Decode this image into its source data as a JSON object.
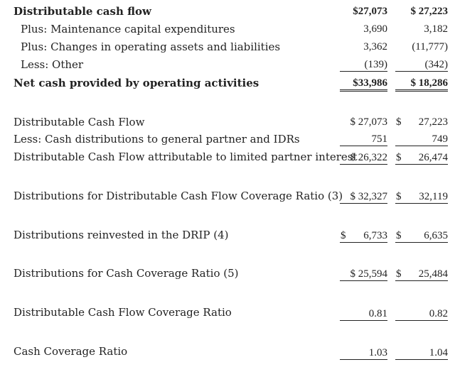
{
  "section1": {
    "row1": {
      "label": "Distributable cash flow",
      "c1": "$27,073",
      "c2": "$ 27,223"
    },
    "row2": {
      "label": "Plus: Maintenance capital expenditures",
      "c1": "3,690",
      "c2": "3,182"
    },
    "row3": {
      "label": "Plus: Changes in operating assets and liabilities",
      "c1": "3,362",
      "c2": "(11,777)"
    },
    "row4": {
      "label": "Less: Other",
      "c1": "(139)",
      "c2": "(342)"
    },
    "row5": {
      "label": "Net cash provided by operating activities",
      "c1": "$33,986",
      "c2": "$ 18,286"
    }
  },
  "section2": {
    "row1": {
      "label": "Distributable Cash Flow",
      "c1": "$ 27,073",
      "d2": "$",
      "c2": "27,223"
    },
    "row2": {
      "label": "Less: Cash distributions to general partner and IDRs",
      "c1": "751",
      "c2": "749"
    },
    "row3": {
      "label": "Distributable Cash Flow attributable to limited partner interest",
      "c1": "$ 26,322",
      "d2": "$",
      "c2": "26,474"
    }
  },
  "row_dcf_ratio_distributions": {
    "label": "Distributions for Distributable Cash Flow Coverage Ratio (3)",
    "c1": "$ 32,327",
    "d2": "$",
    "c2": "32,119"
  },
  "row_drip": {
    "label": "Distributions reinvested in the DRIP (4)",
    "d1": "$",
    "c1": "6,733",
    "d2": "$",
    "c2": "6,635"
  },
  "row_cash_ratio_distributions": {
    "label": "Distributions for Cash Coverage Ratio (5)",
    "c1": "$ 25,594",
    "d2": "$",
    "c2": "25,484"
  },
  "row_dcf_coverage": {
    "label": "Distributable Cash Flow Coverage Ratio",
    "c1": "0.81",
    "c2": "0.82"
  },
  "row_cash_coverage": {
    "label": "Cash Coverage Ratio",
    "c1": "1.03",
    "c2": "1.04"
  }
}
